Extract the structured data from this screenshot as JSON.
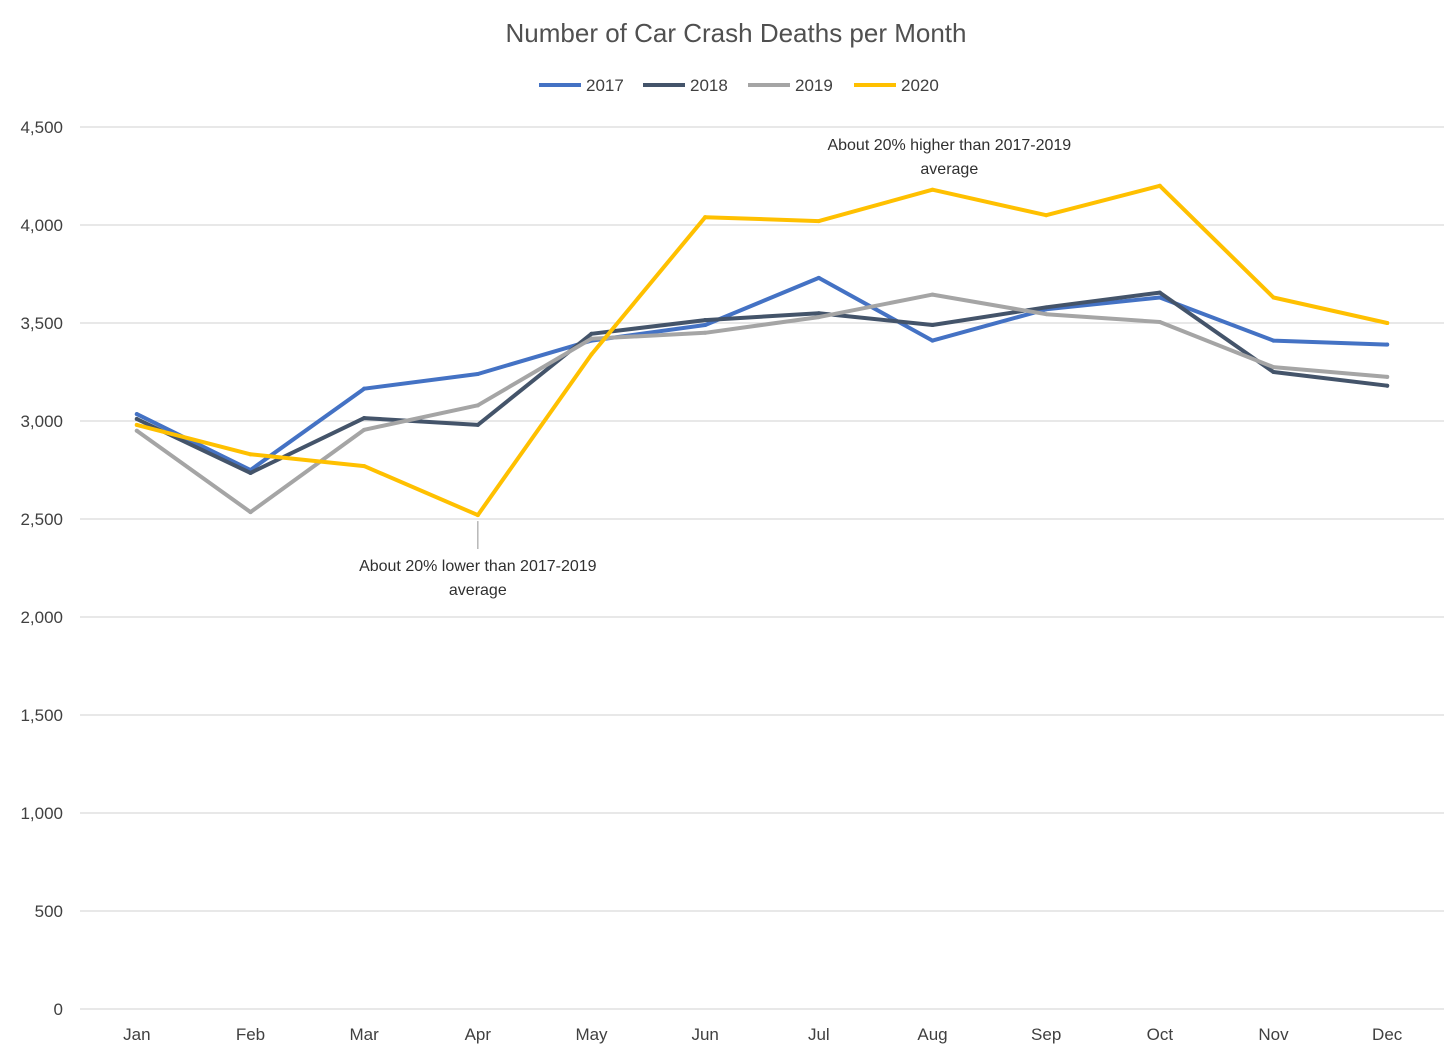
{
  "chart_data": {
    "type": "line",
    "title": "Number of Car Crash Deaths per Month",
    "xlabel": "",
    "ylabel": "",
    "categories": [
      "Jan",
      "Feb",
      "Mar",
      "Apr",
      "May",
      "Jun",
      "Jul",
      "Aug",
      "Sep",
      "Oct",
      "Nov",
      "Dec"
    ],
    "ylim": [
      0,
      4500
    ],
    "y_ticks": [
      0,
      500,
      1000,
      1500,
      2000,
      2500,
      3000,
      3500,
      4000,
      4500
    ],
    "y_tick_labels": [
      "0",
      "500",
      "1,000",
      "1,500",
      "2,000",
      "2,500",
      "3,000",
      "3,500",
      "4,000",
      "4,500"
    ],
    "grid": true,
    "legend_position": "top-center",
    "series": [
      {
        "name": "2017",
        "color": "#4472c4",
        "values": [
          3035,
          2750,
          3165,
          3240,
          3410,
          3490,
          3730,
          3410,
          3570,
          3630,
          3410,
          3390
        ]
      },
      {
        "name": "2018",
        "color": "#44546a",
        "values": [
          3010,
          2735,
          3015,
          2980,
          3445,
          3515,
          3550,
          3490,
          3580,
          3655,
          3250,
          3180
        ]
      },
      {
        "name": "2019",
        "color": "#a5a5a5",
        "values": [
          2950,
          2535,
          2955,
          3080,
          3420,
          3450,
          3530,
          3645,
          3545,
          3505,
          3275,
          3225
        ]
      },
      {
        "name": "2020",
        "color": "#ffc000",
        "values": [
          2980,
          2830,
          2770,
          2520,
          3340,
          4040,
          4020,
          4180,
          4050,
          4200,
          3630,
          3500
        ]
      }
    ],
    "annotations": [
      {
        "id": "low",
        "lines": [
          "About 20% lower than 2017-2019",
          "average"
        ]
      },
      {
        "id": "high",
        "lines": [
          "About 20% higher than 2017-2019",
          "average"
        ]
      }
    ]
  }
}
